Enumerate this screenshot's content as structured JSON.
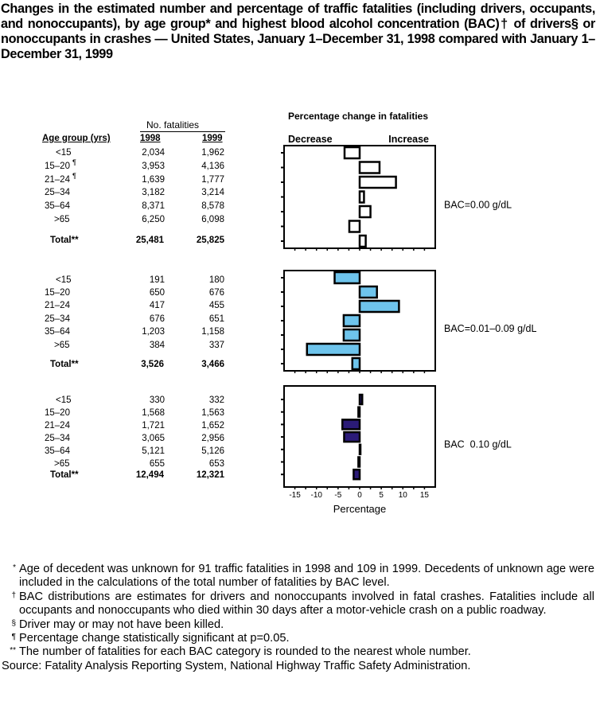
{
  "title": "Changes in the estimated number and percentage of traffic fatalities (including drivers, occupants, and nonoccupants), by age group* and highest blood alcohol concentration (BAC)† of drivers§ or nonoccupants in crashes — United States, January 1–December 31, 1998 compared with January 1–December 31, 1999",
  "table": {
    "group_header": "No. fatalities",
    "col_age": "Age group (yrs)",
    "col_1998": "1998",
    "col_1999": "1999",
    "panels": [
      {
        "rows": [
          {
            "age": "<15",
            "mark": "",
            "y1998": "2,034",
            "y1999": "1,962"
          },
          {
            "age": "15–20",
            "mark": "¶",
            "y1998": "3,953",
            "y1999": "4,136"
          },
          {
            "age": "21–24",
            "mark": "¶",
            "y1998": "1,639",
            "y1999": "1,777"
          },
          {
            "age": "25–34",
            "mark": "",
            "y1998": "3,182",
            "y1999": "3,214"
          },
          {
            "age": "35–64",
            "mark": "",
            "y1998": "8,371",
            "y1999": "8,578"
          },
          {
            "age": ">65",
            "mark": "",
            "y1998": "6,250",
            "y1999": "6,098"
          }
        ],
        "total": {
          "label": "Total**",
          "y1998": "25,481",
          "y1999": "25,825"
        }
      },
      {
        "rows": [
          {
            "age": "<15",
            "mark": "",
            "y1998": "191",
            "y1999": "180"
          },
          {
            "age": "15–20",
            "mark": "",
            "y1998": "650",
            "y1999": "676"
          },
          {
            "age": "21–24",
            "mark": "",
            "y1998": "417",
            "y1999": "455"
          },
          {
            "age": "25–34",
            "mark": "",
            "y1998": "676",
            "y1999": "651"
          },
          {
            "age": "35–64",
            "mark": "",
            "y1998": "1,203",
            "y1999": "1,158"
          },
          {
            "age": ">65",
            "mark": "",
            "y1998": "384",
            "y1999": "337"
          }
        ],
        "total": {
          "label": "Total**",
          "y1998": "3,526",
          "y1999": "3,466"
        }
      },
      {
        "rows": [
          {
            "age": "<15",
            "mark": "",
            "y1998": "330",
            "y1999": "332"
          },
          {
            "age": "15–20",
            "mark": "",
            "y1998": "1,568",
            "y1999": "1,563"
          },
          {
            "age": "21–24",
            "mark": "",
            "y1998": "1,721",
            "y1999": "1,652"
          },
          {
            "age": "25–34",
            "mark": "",
            "y1998": "3,065",
            "y1999": "2,956"
          },
          {
            "age": "35–64",
            "mark": "",
            "y1998": "5,121",
            "y1999": "5,126"
          },
          {
            "age": ">65",
            "mark": "",
            "y1998": "655",
            "y1999": "653"
          }
        ],
        "total": {
          "label": "Total**",
          "y1998": "12,494",
          "y1999": "12,321"
        }
      }
    ]
  },
  "chart_data": {
    "type": "bar",
    "orientation": "horizontal",
    "title": "Percentage change in fatalities",
    "left_label": "Decrease",
    "right_label": "Increase",
    "xlabel": "Percentage",
    "xlim": [
      -17.5,
      17.5
    ],
    "xticks": [
      -15,
      -10,
      -5,
      0,
      5,
      10,
      15
    ],
    "categories": [
      "<15",
      "15–20",
      "21–24",
      "25–34",
      "35–64",
      ">65",
      "Total"
    ],
    "series": [
      {
        "name": "BAC=0.00 g/dL",
        "color": "#ffffff",
        "values": [
          -3.5,
          4.6,
          8.4,
          1.0,
          2.5,
          -2.4,
          1.4
        ]
      },
      {
        "name": "BAC=0.01–0.09 g/dL",
        "color": "#6ec4ec",
        "values": [
          -5.8,
          4.0,
          9.1,
          -3.7,
          -3.7,
          -12.2,
          -1.7
        ]
      },
      {
        "name": "BAC  0.10 g/dL",
        "color": "#2b1b78",
        "values": [
          0.6,
          -0.3,
          -4.0,
          -3.6,
          0.1,
          -0.3,
          -1.4
        ]
      }
    ]
  },
  "footnotes": [
    {
      "mark": "*",
      "text": "Age of decedent was unknown for 91 traffic fatalities in 1998 and 109 in 1999. Decedents of unknown age were included in the calculations of the total number of fatalities by BAC level."
    },
    {
      "mark": "†",
      "text": "BAC distributions are estimates for drivers and nonoccupants involved in fatal crashes. Fatalities include all occupants and nonoccupants who died within 30 days after a motor-vehicle crash on a public roadway."
    },
    {
      "mark": "§",
      "text": "Driver may or may not have been killed."
    },
    {
      "mark": "¶",
      "text": "Percentage change statistically significant at p=0.05."
    },
    {
      "mark": "**",
      "text": "The number of fatalities for each BAC category is rounded to the nearest whole number."
    }
  ],
  "source": "Source: Fatality Analysis Reporting System, National Highway Traffic Safety Administration."
}
